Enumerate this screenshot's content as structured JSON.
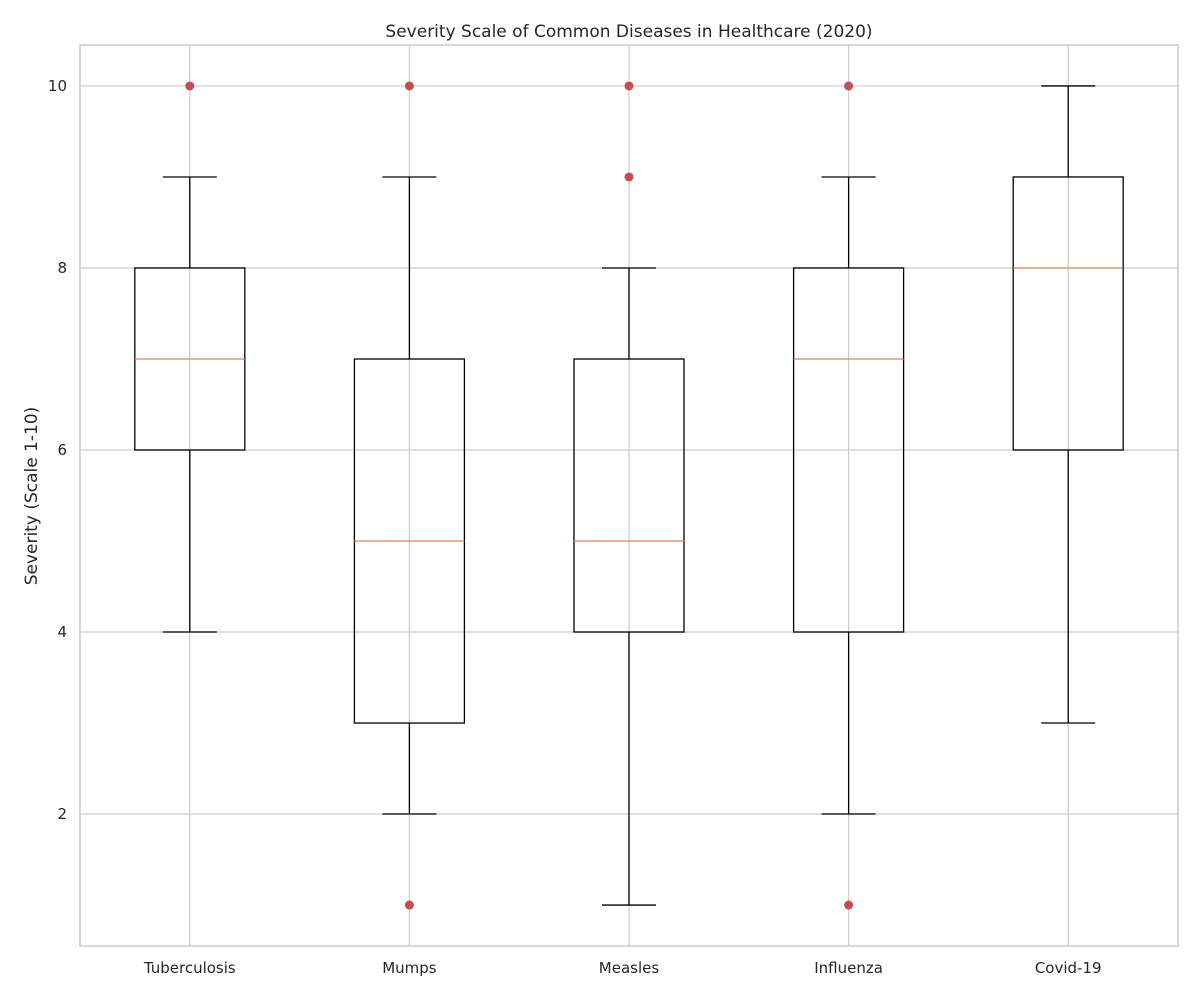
{
  "chart_data": {
    "type": "box",
    "title": "Severity Scale of Common Diseases in Healthcare (2020)",
    "xlabel": "",
    "ylabel": "Severity (Scale 1-10)",
    "ylim": [
      0.55,
      10.45
    ],
    "yticks": [
      2,
      4,
      6,
      8,
      10
    ],
    "grid": true,
    "colors": {
      "box": "#000000",
      "median": "#dd8452",
      "outlier": "#c44e52",
      "grid": "#cccccc",
      "axes": "#cccccc",
      "text": "#262626"
    },
    "categories": [
      "Tuberculosis",
      "Mumps",
      "Measles",
      "Influenza",
      "Covid-19"
    ],
    "boxes": [
      {
        "category": "Tuberculosis",
        "whisker_low": 4,
        "q1": 6,
        "median": 7,
        "q3": 8,
        "whisker_high": 9,
        "outliers": [
          10
        ]
      },
      {
        "category": "Mumps",
        "whisker_low": 2,
        "q1": 3,
        "median": 5,
        "q3": 7,
        "whisker_high": 9,
        "outliers": [
          1,
          10
        ]
      },
      {
        "category": "Measles",
        "whisker_low": 1,
        "q1": 4,
        "median": 5,
        "q3": 7,
        "whisker_high": 8,
        "outliers": [
          9,
          10
        ]
      },
      {
        "category": "Influenza",
        "whisker_low": 2,
        "q1": 4,
        "median": 7,
        "q3": 8,
        "whisker_high": 9,
        "outliers": [
          1,
          10
        ]
      },
      {
        "category": "Covid-19",
        "whisker_low": 3,
        "q1": 6,
        "median": 8,
        "q3": 9,
        "whisker_high": 10,
        "outliers": []
      }
    ]
  }
}
